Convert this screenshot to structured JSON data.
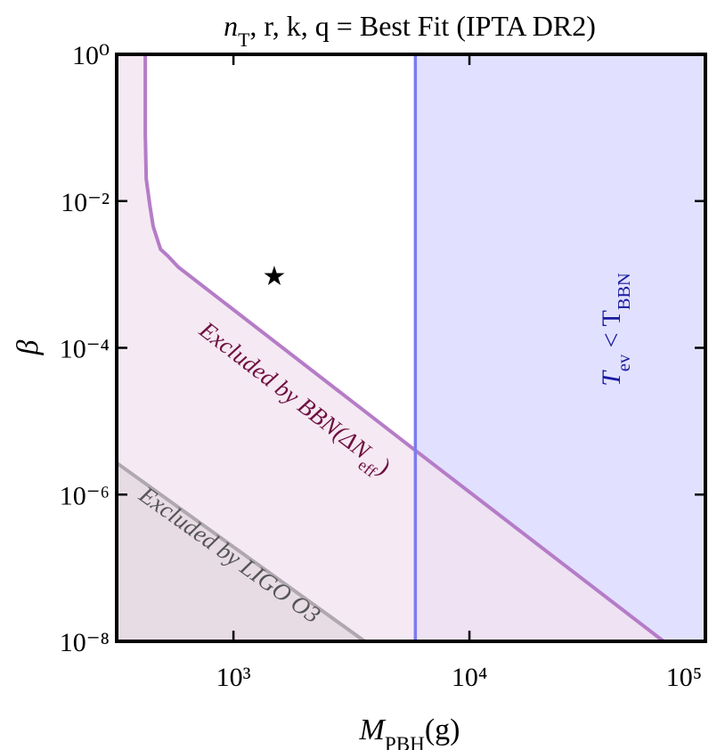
{
  "chart_data": {
    "type": "line",
    "title": [
      "n",
      "T",
      ", r, k, q = Best Fit (IPTA DR2)"
    ],
    "xlabel": [
      "M",
      "PBH",
      "(g)"
    ],
    "ylabel": [
      "β"
    ],
    "xscale": "log",
    "yscale": "log",
    "xlim": [
      320,
      100000
    ],
    "ylim": [
      1e-08,
      1
    ],
    "xticks": [
      {
        "value": 1000,
        "label": "10³"
      },
      {
        "value": 10000,
        "label": "10⁴"
      },
      {
        "value": 100000,
        "label": "10⁵"
      }
    ],
    "yticks": [
      {
        "value": 1,
        "label": "10⁰"
      },
      {
        "value": 0.01,
        "label": "10⁻²"
      },
      {
        "value": 0.0001,
        "label": "10⁻⁴"
      },
      {
        "value": 1e-06,
        "label": "10⁻⁶"
      },
      {
        "value": 1e-08,
        "label": "10⁻⁸"
      }
    ],
    "curves": [
      {
        "label": [
          "Excluded by BBN(ΔN",
          "eff",
          ")"
        ],
        "color": "#b57cc7",
        "fill": "#f1e1ef",
        "text_color": "#6e1040",
        "x": [
          423,
          423,
          427,
          442,
          457,
          491,
          526,
          584,
          5900,
          66500
        ],
        "values": [
          1,
          0.083,
          0.02,
          0.0089,
          0.0045,
          0.0022,
          0.0018,
          0.00126,
          4e-06,
          1e-08
        ]
      },
      {
        "label": [
          "Excluded by LIGO O3"
        ],
        "color": "#b0a8b0",
        "fill": "#e4d8e0",
        "text_color": "#555555",
        "x": [
          320,
          3600
        ],
        "values": [
          2.7e-06,
          1e-08
        ]
      }
    ],
    "vline": {
      "x": 5900,
      "label": [
        "T",
        "ev",
        " < T",
        "BBN"
      ],
      "color": "#7b7bf0",
      "fill": "#dcdcff",
      "text_color": "#1a1aa0"
    },
    "points": [
      {
        "x": 1490,
        "y": 0.00093,
        "marker": "★",
        "color": "#000000"
      }
    ]
  }
}
